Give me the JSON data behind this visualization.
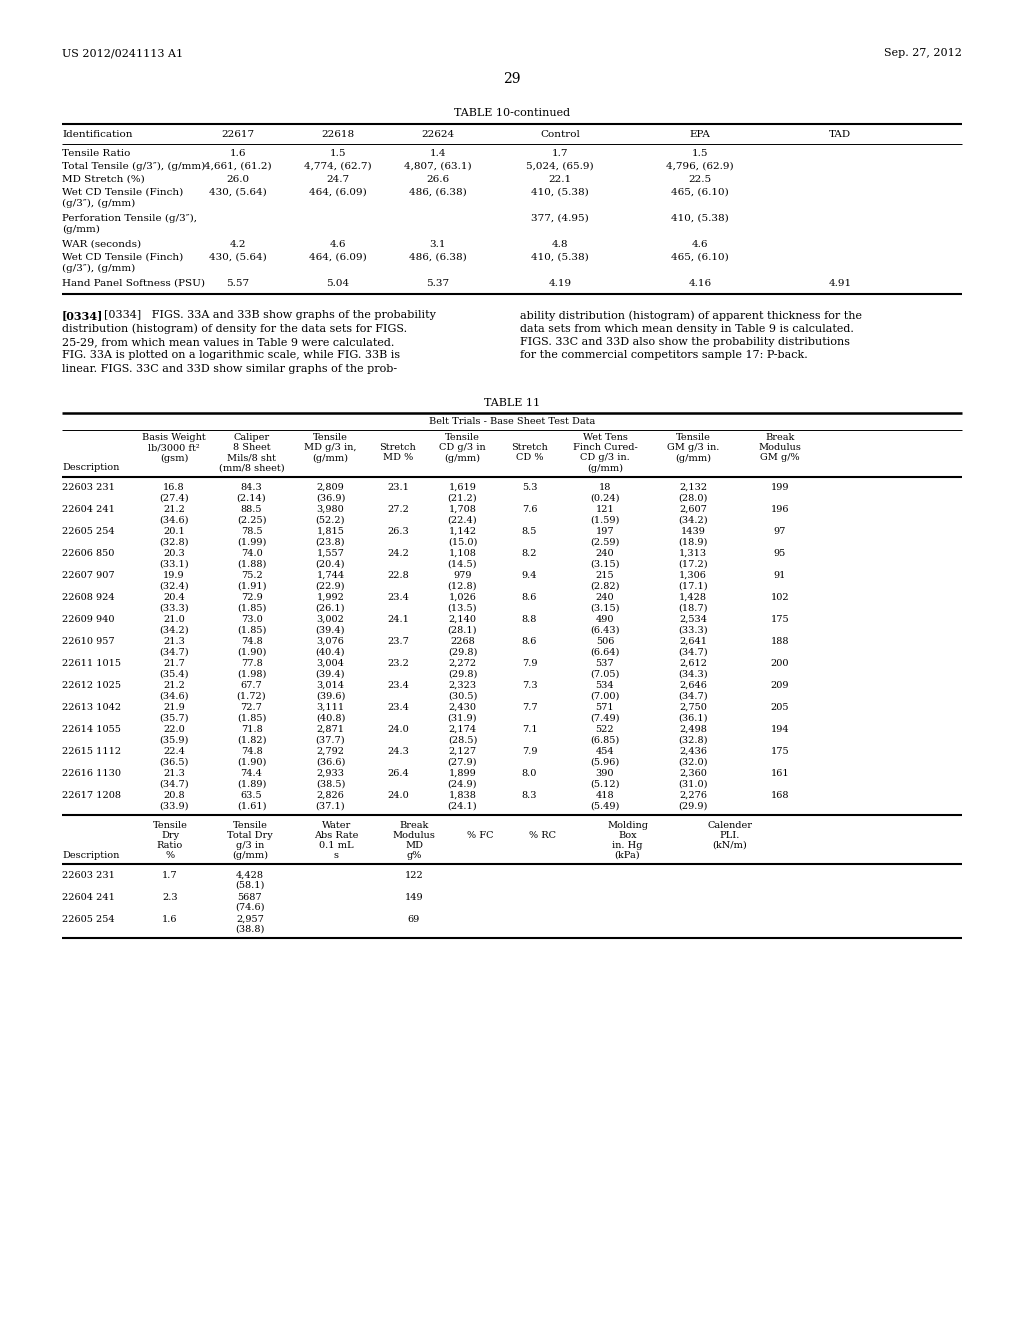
{
  "page_number": "29",
  "left_header": "US 2012/0241113 A1",
  "right_header": "Sep. 27, 2012",
  "table10_title": "TABLE 10-continued",
  "table10_cols": [
    "Identification",
    "22617",
    "22618",
    "22624",
    "Control",
    "EPA",
    "TAD"
  ],
  "table10_rows": [
    [
      "Tensile Ratio",
      "1.6",
      "1.5",
      "1.4",
      "1.7",
      "1.5",
      ""
    ],
    [
      "Total Tensile (g/3″), (g/mm)",
      "4,661, (61.2)",
      "4,774, (62.7)",
      "4,807, (63.1)",
      "5,024, (65.9)",
      "4,796, (62.9)",
      ""
    ],
    [
      "MD Stretch (%)",
      "26.0",
      "24.7",
      "26.6",
      "22.1",
      "22.5",
      ""
    ],
    [
      "Wet CD Tensile (Finch)\n(g/3″), (g/mm)",
      "430, (5.64)",
      "464, (6.09)",
      "486, (6.38)",
      "410, (5.38)",
      "465, (6.10)",
      ""
    ],
    [
      "Perforation Tensile (g/3″),\n(g/mm)",
      "",
      "",
      "",
      "377, (4.95)",
      "410, (5.38)",
      ""
    ],
    [
      "WAR (seconds)",
      "4.2",
      "4.6",
      "3.1",
      "4.8",
      "4.6",
      ""
    ],
    [
      "Wet CD Tensile (Finch)\n(g/3″), (g/mm)",
      "430, (5.64)",
      "464, (6.09)",
      "486, (6.38)",
      "410, (5.38)",
      "465, (6.10)",
      ""
    ],
    [
      "Hand Panel Softness (PSU)",
      "5.57",
      "5.04",
      "5.37",
      "4.19",
      "4.16",
      "4.91"
    ]
  ],
  "para_left_lines": [
    "[0334]   FIGS. 33A and 33B show graphs of the probability",
    "distribution (histogram) of density for the data sets for FIGS.",
    "25-29, from which mean values in Table 9 were calculated.",
    "FIG. 33A is plotted on a logarithmic scale, while FIG. 33B is",
    "linear. FIGS. 33C and 33D show similar graphs of the prob-"
  ],
  "para_right_lines": [
    "ability distribution (histogram) of apparent thickness for the",
    "data sets from which mean density in Table 9 is calculated.",
    "FIGS. 33C and 33D also show the probability distributions",
    "for the commercial competitors sample 17: P-back."
  ],
  "table11_title": "TABLE 11",
  "table11_subtitle": "Belt Trials - Base Sheet Test Data",
  "table11_header": [
    [
      "",
      "Basis Weight",
      "Caliper",
      "Tensile",
      "",
      "Tensile",
      "",
      "Wet Tens",
      "Tensile",
      "Break"
    ],
    [
      "",
      "lb/3000 ft²",
      "8 Sheet",
      "MD g/3 in,",
      "Stretch",
      "CD g/3 in",
      "Stretch",
      "Finch Cured-",
      "GM g/3 in.",
      "Modulus"
    ],
    [
      "",
      "(gsm)",
      "Mils/8 sht",
      "(g/mm)",
      "MD %",
      "(g/mm)",
      "CD %",
      "CD g/3 in.",
      "(g/mm)",
      "GM g/%"
    ],
    [
      "Description",
      "",
      "(mm/8 sheet)",
      "",
      "",
      "",
      "",
      "(g/mm)",
      "",
      ""
    ]
  ],
  "table11_data": [
    [
      "22603 231",
      "16.8",
      "84.3",
      "2,809",
      "23.1",
      "1,619",
      "5.3",
      "18",
      "2,132",
      "199"
    ],
    [
      "",
      "(27.4)",
      "(2.14)",
      "(36.9)",
      "",
      "(21.2)",
      "",
      "(0.24)",
      "(28.0)",
      ""
    ],
    [
      "22604 241",
      "21.2",
      "88.5",
      "3,980",
      "27.2",
      "1,708",
      "7.6",
      "121",
      "2,607",
      "196"
    ],
    [
      "",
      "(34.6)",
      "(2.25)",
      "(52.2)",
      "",
      "(22.4)",
      "",
      "(1.59)",
      "(34.2)",
      ""
    ],
    [
      "22605 254",
      "20.1",
      "78.5",
      "1,815",
      "26.3",
      "1,142",
      "8.5",
      "197",
      "1439",
      "97"
    ],
    [
      "",
      "(32.8)",
      "(1.99)",
      "(23.8)",
      "",
      "(15.0)",
      "",
      "(2.59)",
      "(18.9)",
      ""
    ],
    [
      "22606 850",
      "20.3",
      "74.0",
      "1,557",
      "24.2",
      "1,108",
      "8.2",
      "240",
      "1,313",
      "95"
    ],
    [
      "",
      "(33.1)",
      "(1.88)",
      "(20.4)",
      "",
      "(14.5)",
      "",
      "(3.15)",
      "(17.2)",
      ""
    ],
    [
      "22607 907",
      "19.9",
      "75.2",
      "1,744",
      "22.8",
      "979",
      "9.4",
      "215",
      "1,306",
      "91"
    ],
    [
      "",
      "(32.4)",
      "(1.91)",
      "(22.9)",
      "",
      "(12.8)",
      "",
      "(2.82)",
      "(17.1)",
      ""
    ],
    [
      "22608 924",
      "20.4",
      "72.9",
      "1,992",
      "23.4",
      "1,026",
      "8.6",
      "240",
      "1,428",
      "102"
    ],
    [
      "",
      "(33.3)",
      "(1.85)",
      "(26.1)",
      "",
      "(13.5)",
      "",
      "(3.15)",
      "(18.7)",
      ""
    ],
    [
      "22609 940",
      "21.0",
      "73.0",
      "3,002",
      "24.1",
      "2,140",
      "8.8",
      "490",
      "2,534",
      "175"
    ],
    [
      "",
      "(34.2)",
      "(1.85)",
      "(39.4)",
      "",
      "(28.1)",
      "",
      "(6.43)",
      "(33.3)",
      ""
    ],
    [
      "22610 957",
      "21.3",
      "74.8",
      "3,076",
      "23.7",
      "2268",
      "8.6",
      "506",
      "2,641",
      "188"
    ],
    [
      "",
      "(34.7)",
      "(1.90)",
      "(40.4)",
      "",
      "(29.8)",
      "",
      "(6.64)",
      "(34.7)",
      ""
    ],
    [
      "22611 1015",
      "21.7",
      "77.8",
      "3,004",
      "23.2",
      "2,272",
      "7.9",
      "537",
      "2,612",
      "200"
    ],
    [
      "",
      "(35.4)",
      "(1.98)",
      "(39.4)",
      "",
      "(29.8)",
      "",
      "(7.05)",
      "(34.3)",
      ""
    ],
    [
      "22612 1025",
      "21.2",
      "67.7",
      "3,014",
      "23.4",
      "2,323",
      "7.3",
      "534",
      "2,646",
      "209"
    ],
    [
      "",
      "(34.6)",
      "(1.72)",
      "(39.6)",
      "",
      "(30.5)",
      "",
      "(7.00)",
      "(34.7)",
      ""
    ],
    [
      "22613 1042",
      "21.9",
      "72.7",
      "3,111",
      "23.4",
      "2,430",
      "7.7",
      "571",
      "2,750",
      "205"
    ],
    [
      "",
      "(35.7)",
      "(1.85)",
      "(40.8)",
      "",
      "(31.9)",
      "",
      "(7.49)",
      "(36.1)",
      ""
    ],
    [
      "22614 1055",
      "22.0",
      "71.8",
      "2,871",
      "24.0",
      "2,174",
      "7.1",
      "522",
      "2,498",
      "194"
    ],
    [
      "",
      "(35.9)",
      "(1.82)",
      "(37.7)",
      "",
      "(28.5)",
      "",
      "(6.85)",
      "(32.8)",
      ""
    ],
    [
      "22615 1112",
      "22.4",
      "74.8",
      "2,792",
      "24.3",
      "2,127",
      "7.9",
      "454",
      "2,436",
      "175"
    ],
    [
      "",
      "(36.5)",
      "(1.90)",
      "(36.6)",
      "",
      "(27.9)",
      "",
      "(5.96)",
      "(32.0)",
      ""
    ],
    [
      "22616 1130",
      "21.3",
      "74.4",
      "2,933",
      "26.4",
      "1,899",
      "8.0",
      "390",
      "2,360",
      "161"
    ],
    [
      "",
      "(34.7)",
      "(1.89)",
      "(38.5)",
      "",
      "(24.9)",
      "",
      "(5.12)",
      "(31.0)",
      ""
    ],
    [
      "22617 1208",
      "20.8",
      "63.5",
      "2,826",
      "24.0",
      "1,838",
      "8.3",
      "418",
      "2,276",
      "168"
    ],
    [
      "",
      "(33.9)",
      "(1.61)",
      "(37.1)",
      "",
      "(24.1)",
      "",
      "(5.49)",
      "(29.9)",
      ""
    ]
  ],
  "table11_bot_cols": [
    "Description",
    "Tensile\nDry\nRatio\n%",
    "Tensile\nTotal Dry\ng/3 in\n(g/mm)",
    "Water\nAbs Rate\n0.1 mL\ns",
    "Break\nModulus\nMD\ng%",
    "% FC",
    "% RC",
    "Molding\nBox\nin. Hg\n(kPa)",
    "Calender\nPLI.\n(kN/m)"
  ],
  "table11_bottom_data": [
    [
      "22603 231",
      "1.7",
      "4,428\n(58.1)",
      "",
      "122",
      "",
      "",
      "",
      ""
    ],
    [
      "22604 241",
      "2.3",
      "5687\n(74.6)",
      "",
      "149",
      "",
      "",
      "",
      ""
    ],
    [
      "22605 254",
      "1.6",
      "2,957\n(38.8)",
      "",
      "69",
      "",
      "",
      "",
      ""
    ]
  ]
}
